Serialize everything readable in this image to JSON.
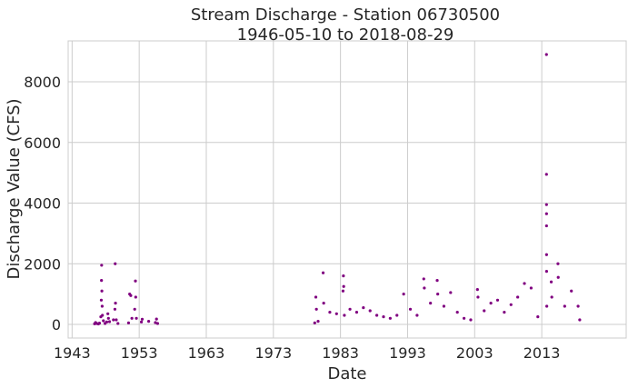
{
  "chart_data": {
    "type": "scatter",
    "title": "Stream Discharge - Station 06730500",
    "subtitle": "1946-05-10 to 2018-08-29",
    "xlabel": "Date",
    "ylabel": "Discharge Value (CFS)",
    "xlim": [
      "1942-06-01",
      "2025-08-01"
    ],
    "ylim": [
      -450,
      9350
    ],
    "xticks": [
      "1943",
      "1953",
      "1963",
      "1973",
      "1983",
      "1993",
      "2003",
      "2013"
    ],
    "yticks": [
      0,
      2000,
      4000,
      6000,
      8000
    ],
    "grid": true,
    "marker_color": "#800080",
    "series": [
      {
        "points": [
          [
            "1946-05-10",
            20
          ],
          [
            "1946-07-01",
            60
          ],
          [
            "1946-09-01",
            30
          ],
          [
            "1946-12-01",
            15
          ],
          [
            "1947-02-01",
            40
          ],
          [
            "1947-04-15",
            250
          ],
          [
            "1947-05-10",
            800
          ],
          [
            "1947-05-20",
            1450
          ],
          [
            "1947-05-28",
            1950
          ],
          [
            "1947-06-10",
            1100
          ],
          [
            "1947-06-25",
            600
          ],
          [
            "1947-07-10",
            300
          ],
          [
            "1947-09-01",
            120
          ],
          [
            "1947-12-01",
            30
          ],
          [
            "1948-03-01",
            80
          ],
          [
            "1948-05-01",
            350
          ],
          [
            "1948-06-01",
            200
          ],
          [
            "1948-08-01",
            90
          ],
          [
            "1949-03-01",
            150
          ],
          [
            "1949-05-20",
            500
          ],
          [
            "1949-06-05",
            2000
          ],
          [
            "1949-06-20",
            700
          ],
          [
            "1949-08-01",
            150
          ],
          [
            "1949-11-01",
            30
          ],
          [
            "1951-06-01",
            50
          ],
          [
            "1951-08-01",
            1000
          ],
          [
            "1951-10-01",
            950
          ],
          [
            "1951-12-01",
            200
          ],
          [
            "1952-05-01",
            500
          ],
          [
            "1952-06-10",
            1430
          ],
          [
            "1952-06-25",
            900
          ],
          [
            "1952-08-01",
            200
          ],
          [
            "1953-05-01",
            80
          ],
          [
            "1953-06-15",
            170
          ],
          [
            "1954-06-01",
            100
          ],
          [
            "1955-06-01",
            60
          ],
          [
            "1955-08-01",
            175
          ],
          [
            "1955-10-01",
            30
          ],
          [
            "1979-03-01",
            50
          ],
          [
            "1979-05-01",
            900
          ],
          [
            "1979-06-01",
            500
          ],
          [
            "1979-09-01",
            100
          ],
          [
            "1980-06-01",
            1700
          ],
          [
            "1980-07-01",
            700
          ],
          [
            "1981-06-01",
            400
          ],
          [
            "1982-06-01",
            350
          ],
          [
            "1983-05-20",
            1100
          ],
          [
            "1983-06-10",
            1600
          ],
          [
            "1983-06-25",
            1250
          ],
          [
            "1983-08-01",
            300
          ],
          [
            "1984-06-01",
            500
          ],
          [
            "1985-06-01",
            400
          ],
          [
            "1986-06-01",
            550
          ],
          [
            "1987-06-01",
            450
          ],
          [
            "1988-06-01",
            300
          ],
          [
            "1989-06-01",
            250
          ],
          [
            "1990-06-01",
            200
          ],
          [
            "1991-06-01",
            300
          ],
          [
            "1992-06-01",
            1000
          ],
          [
            "1993-06-01",
            500
          ],
          [
            "1994-06-01",
            300
          ],
          [
            "1995-06-01",
            1500
          ],
          [
            "1995-07-01",
            1200
          ],
          [
            "1996-06-01",
            700
          ],
          [
            "1997-06-01",
            1450
          ],
          [
            "1997-07-01",
            1000
          ],
          [
            "1998-06-01",
            600
          ],
          [
            "1999-06-01",
            1050
          ],
          [
            "2000-06-01",
            400
          ],
          [
            "2001-06-01",
            200
          ],
          [
            "2002-06-01",
            150
          ],
          [
            "2003-06-01",
            1150
          ],
          [
            "2003-07-01",
            900
          ],
          [
            "2004-06-01",
            450
          ],
          [
            "2005-06-01",
            700
          ],
          [
            "2006-06-01",
            800
          ],
          [
            "2007-06-01",
            400
          ],
          [
            "2008-06-01",
            650
          ],
          [
            "2009-06-01",
            900
          ],
          [
            "2010-06-01",
            1350
          ],
          [
            "2011-06-01",
            1200
          ],
          [
            "2012-06-01",
            250
          ],
          [
            "2013-09-13",
            8900
          ],
          [
            "2013-09-14",
            4950
          ],
          [
            "2013-09-15",
            3950
          ],
          [
            "2013-09-16",
            3650
          ],
          [
            "2013-09-17",
            3250
          ],
          [
            "2013-09-18",
            2300
          ],
          [
            "2013-09-20",
            1750
          ],
          [
            "2013-10-01",
            600
          ],
          [
            "2014-06-01",
            1400
          ],
          [
            "2014-07-01",
            900
          ],
          [
            "2015-06-01",
            2000
          ],
          [
            "2015-06-15",
            1550
          ],
          [
            "2016-06-01",
            600
          ],
          [
            "2017-06-01",
            1100
          ],
          [
            "2018-06-01",
            600
          ],
          [
            "2018-08-29",
            150
          ]
        ]
      }
    ]
  }
}
